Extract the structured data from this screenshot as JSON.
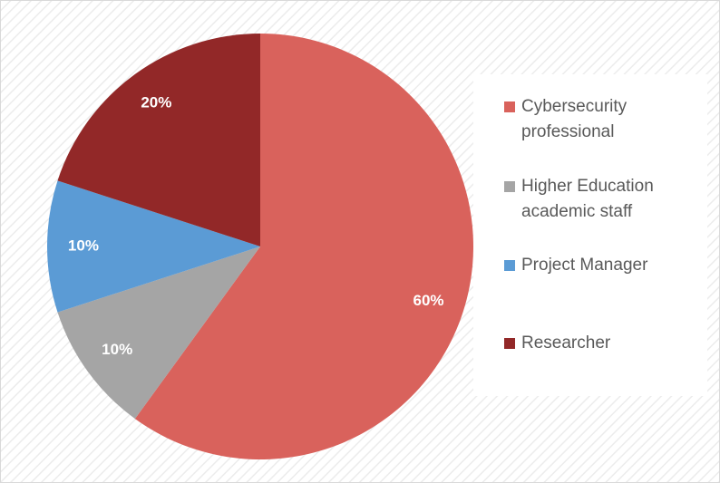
{
  "chart_data": {
    "type": "pie",
    "categories": [
      "Cybersecurity professional",
      "Higher Education academic staff",
      "Project Manager",
      "Researcher"
    ],
    "values": [
      60,
      10,
      10,
      20
    ],
    "value_labels": [
      "60%",
      "10%",
      "10%",
      "20%"
    ],
    "colors": [
      "#d9625c",
      "#a5a5a5",
      "#5b9bd5",
      "#922828"
    ],
    "legend": "right"
  }
}
